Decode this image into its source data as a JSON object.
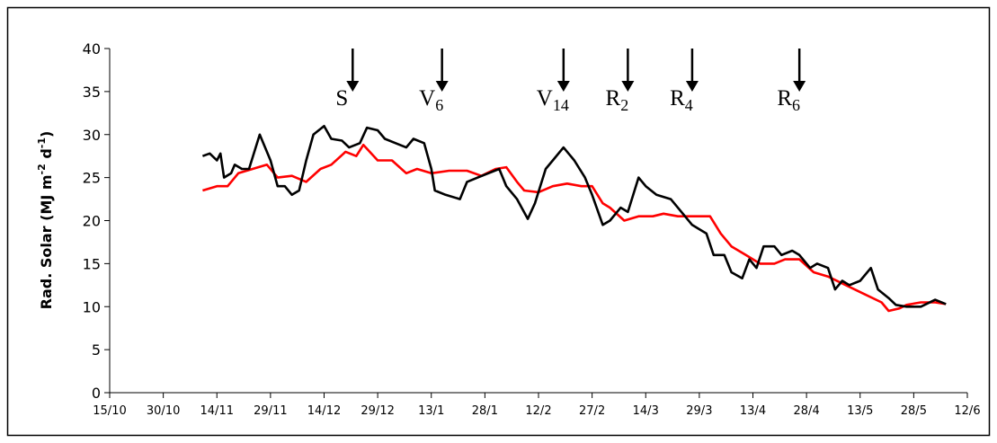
{
  "chart_data": {
    "type": "line",
    "y_label": {
      "text": "Rad. Solar (MJ m",
      "sup1": "-2",
      "mid": " d",
      "sup2": "-1",
      "end": ")"
    },
    "xlim": [
      0,
      240
    ],
    "xticks": [
      {
        "value": 0,
        "label": "15/10"
      },
      {
        "value": 15,
        "label": "30/10"
      },
      {
        "value": 30,
        "label": "14/11"
      },
      {
        "value": 45,
        "label": "29/11"
      },
      {
        "value": 60,
        "label": "14/12"
      },
      {
        "value": 75,
        "label": "29/12"
      },
      {
        "value": 90,
        "label": "13/1"
      },
      {
        "value": 105,
        "label": "28/1"
      },
      {
        "value": 120,
        "label": "12/2"
      },
      {
        "value": 135,
        "label": "27/2"
      },
      {
        "value": 150,
        "label": "14/3"
      },
      {
        "value": 165,
        "label": "29/3"
      },
      {
        "value": 180,
        "label": "13/4"
      },
      {
        "value": 195,
        "label": "28/4"
      },
      {
        "value": 210,
        "label": "13/5"
      },
      {
        "value": 225,
        "label": "28/5"
      },
      {
        "value": 240,
        "label": "12/6"
      }
    ],
    "ylim": [
      0,
      40
    ],
    "yticks": [
      0,
      5,
      10,
      15,
      20,
      25,
      30,
      35,
      40
    ],
    "series": [
      {
        "color": "#000000",
        "x": [
          26,
          28,
          30,
          31,
          32,
          34,
          35,
          37,
          39,
          42,
          45,
          47,
          49,
          51,
          53,
          55,
          57,
          60,
          62,
          65,
          67,
          70,
          72,
          75,
          77,
          80,
          83,
          85,
          88,
          90,
          91,
          94,
          98,
          100,
          103,
          106,
          109,
          111,
          114,
          117,
          119,
          122,
          124,
          127,
          130,
          133,
          135,
          138,
          140,
          143,
          145,
          148,
          150,
          153,
          157,
          159,
          163,
          167,
          169,
          172,
          174,
          177,
          179,
          181,
          183,
          186,
          188,
          191,
          193,
          196,
          198,
          201,
          203,
          205,
          207,
          210,
          213,
          215,
          218,
          220,
          223,
          227,
          231,
          234
        ],
        "values": [
          27.5,
          27.8,
          27,
          27.8,
          25,
          25.5,
          26.5,
          26,
          26,
          30,
          27,
          24,
          24,
          23,
          23.5,
          27,
          30,
          31,
          29.5,
          29.3,
          28.5,
          29,
          30.8,
          30.5,
          29.5,
          29,
          28.5,
          29.5,
          29,
          26,
          23.5,
          23,
          22.5,
          24.5,
          25,
          25.5,
          26,
          24,
          22.5,
          20.2,
          22,
          26,
          27,
          28.5,
          27,
          25,
          23,
          19.5,
          20,
          21.5,
          21,
          25,
          24,
          23,
          22.5,
          21.5,
          19.5,
          18.5,
          16,
          16,
          14,
          13.3,
          15.5,
          14.5,
          17,
          17,
          16,
          16.5,
          16,
          14.5,
          15,
          14.5,
          12,
          13,
          12.5,
          13,
          14.5,
          12,
          11,
          10.2,
          10,
          10,
          10.8,
          10.3
        ]
      },
      {
        "color": "#ff0000",
        "x": [
          26,
          30,
          33,
          36,
          40,
          44,
          47,
          51,
          55,
          59,
          62,
          66,
          69,
          71,
          75,
          79,
          83,
          86,
          90,
          95,
          100,
          104,
          108,
          111,
          114,
          116,
          120,
          124,
          128,
          132,
          135,
          138,
          140,
          144,
          148,
          152,
          155,
          159,
          163,
          168,
          171,
          174,
          178,
          182,
          186,
          189,
          193,
          197,
          201,
          206,
          211,
          216,
          218,
          221,
          223,
          227,
          231,
          234
        ],
        "values": [
          23.5,
          24,
          24,
          25.5,
          26,
          26.5,
          25,
          25.2,
          24.5,
          26,
          26.5,
          28,
          27.5,
          28.8,
          27,
          27,
          25.5,
          26,
          25.5,
          25.8,
          25.8,
          25.2,
          26,
          26.2,
          24.5,
          23.5,
          23.3,
          24,
          24.3,
          24,
          24,
          22,
          21.5,
          20,
          20.5,
          20.5,
          20.8,
          20.5,
          20.5,
          20.5,
          18.5,
          17,
          16,
          15,
          15,
          15.5,
          15.5,
          14,
          13.5,
          12.5,
          11.5,
          10.5,
          9.5,
          9.8,
          10.2,
          10.5,
          10.5,
          10.3
        ]
      }
    ],
    "annotations": [
      {
        "label": "S",
        "x": 68
      },
      {
        "label": "V",
        "sub": "6",
        "x": 93
      },
      {
        "label": "V",
        "sub": "14",
        "x": 127
      },
      {
        "label": "R",
        "sub": "2",
        "x": 145
      },
      {
        "label": "R",
        "sub": "4",
        "x": 163
      },
      {
        "label": "R",
        "sub": "6",
        "x": 193
      }
    ]
  }
}
